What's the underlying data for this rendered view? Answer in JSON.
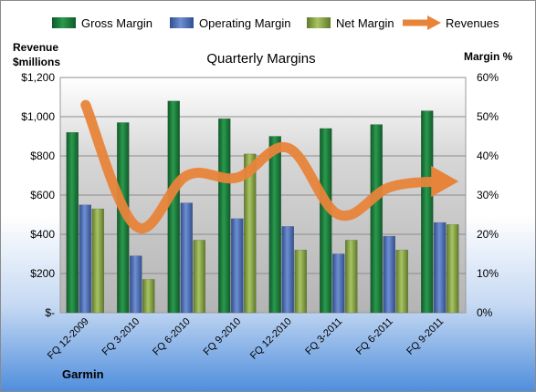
{
  "chart_data": {
    "type": "bar",
    "title": "Quarterly Margins",
    "company_label": "Garmin",
    "y_left_label_line1": "Revenue",
    "y_left_label_line2": "$millions",
    "y_right_label": "Margin %",
    "categories": [
      "FQ 12-2009",
      "FQ 3-2010",
      "FQ 6-2010",
      "FQ 9-2010",
      "FQ 12-2010",
      "FQ 3-2011",
      "FQ 6-2011",
      "FQ 9-2011"
    ],
    "left_axis": {
      "min": 0,
      "max": 1200,
      "ticks": [
        "$-",
        "$200",
        "$400",
        "$600",
        "$800",
        "$1,000",
        "$1,200"
      ]
    },
    "right_axis": {
      "min": 0,
      "max": 60,
      "ticks": [
        "0%",
        "10%",
        "20%",
        "30%",
        "40%",
        "50%",
        "60%"
      ]
    },
    "series": [
      {
        "name": "Gross Margin",
        "axis": "right",
        "kind": "bar",
        "color": "#1f7a3c",
        "values": [
          46,
          48.5,
          54,
          49.5,
          45,
          47,
          48,
          51.5
        ]
      },
      {
        "name": "Operating Margin",
        "axis": "right",
        "kind": "bar",
        "color": "#4f6fb5",
        "values": [
          27.5,
          14.5,
          28,
          24,
          22,
          15,
          19.5,
          23
        ]
      },
      {
        "name": "Net Margin",
        "axis": "right",
        "kind": "bar",
        "color": "#8fae4a",
        "values": [
          26.5,
          8.5,
          18.5,
          40.5,
          16,
          18.5,
          16,
          22.5
        ]
      },
      {
        "name": "Revenues",
        "axis": "left",
        "kind": "line",
        "color": "#e8843a",
        "values": [
          1060,
          440,
          700,
          690,
          840,
          500,
          640,
          670
        ]
      }
    ],
    "grid": true,
    "legend_position": "top"
  }
}
